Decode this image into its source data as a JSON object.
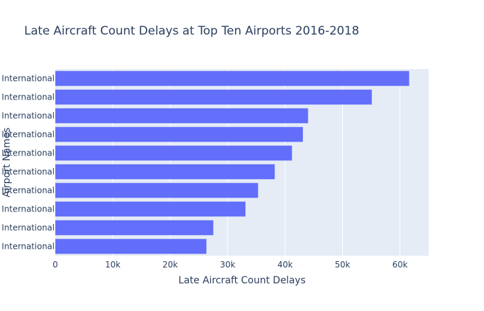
{
  "chart_data": {
    "type": "bar",
    "orientation": "horizontal",
    "title": "Late Aircraft Count Delays at Top Ten Airports 2016-2018",
    "xlabel": "Late Aircraft Count Delays",
    "ylabel": "Airport Names",
    "categories": [
      "International",
      "International",
      "International",
      "International",
      "International",
      "International",
      "International",
      "International",
      "International",
      "International"
    ],
    "values": [
      61600,
      55100,
      44000,
      43100,
      41200,
      38200,
      35300,
      33100,
      27500,
      26300
    ],
    "xlim": [
      0,
      65000
    ],
    "xticks": [
      0,
      10000,
      20000,
      30000,
      40000,
      50000,
      60000
    ],
    "xtick_labels": [
      "0",
      "10k",
      "20k",
      "30k",
      "40k",
      "50k",
      "60k"
    ],
    "grid": true,
    "colors": {
      "bar": "#636efa",
      "plot_background": "#e5ecf6",
      "grid": "#ffffff",
      "text": "#2a3f5f"
    }
  }
}
